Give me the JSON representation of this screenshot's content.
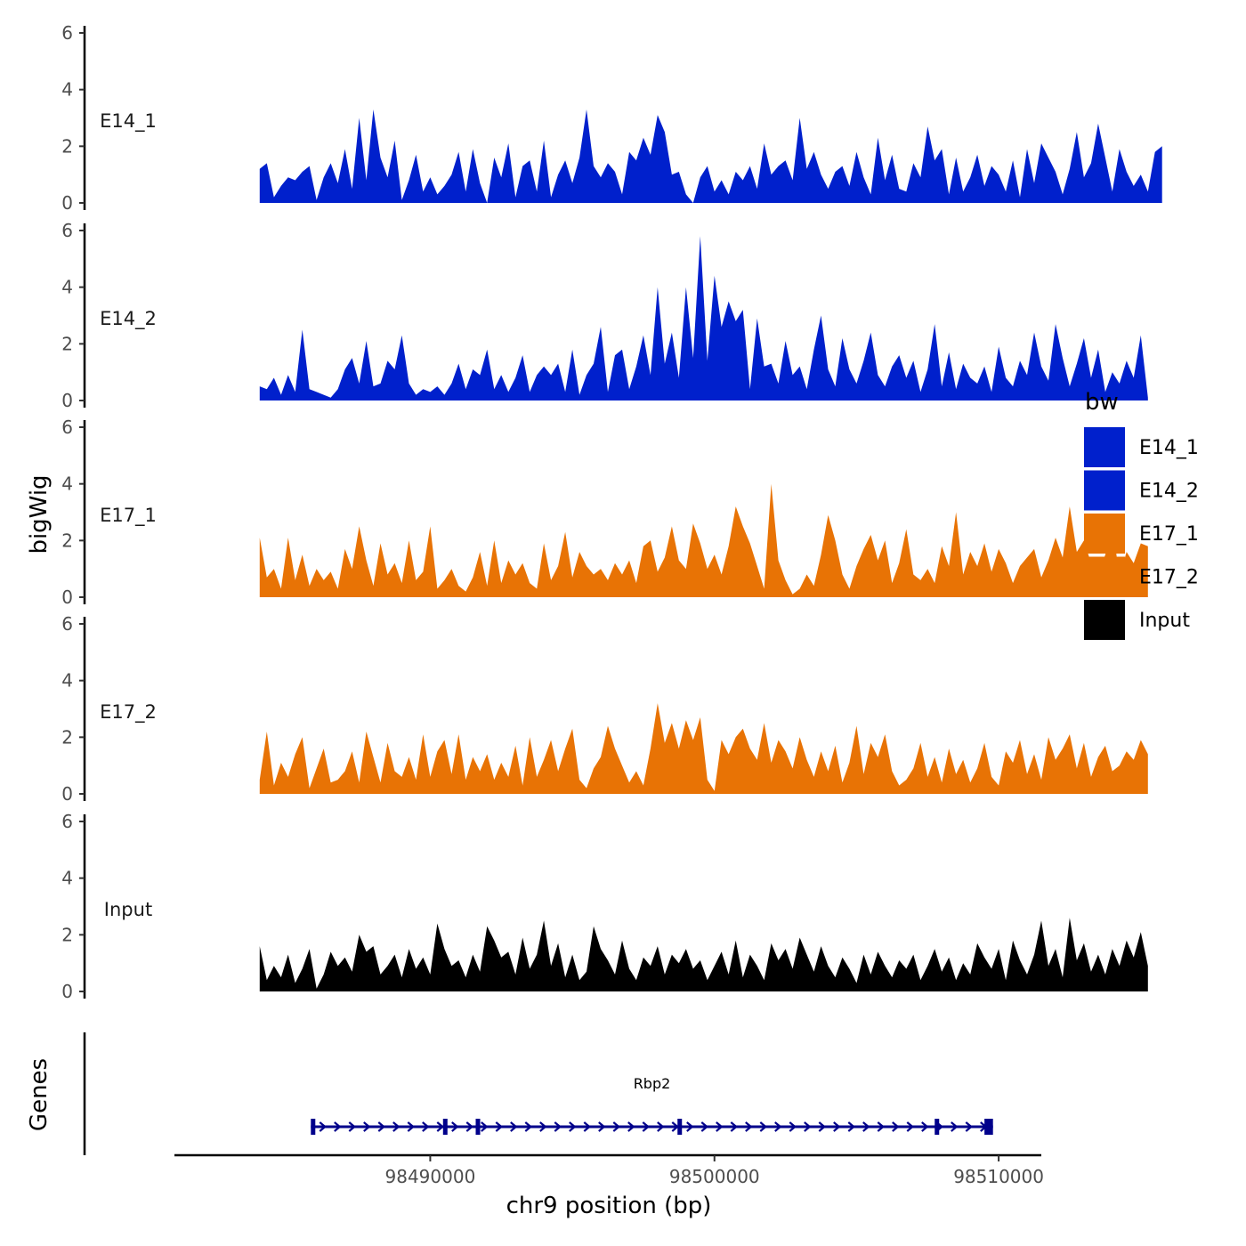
{
  "chart_data": {
    "type": "area",
    "title": "",
    "xlabel": "chr9 position (bp)",
    "ylabel": "bigWig",
    "genes_label": "Genes",
    "xlim": [
      98481000,
      98511500
    ],
    "ylim": [
      0,
      6
    ],
    "x_ticks": [
      98490000,
      98500000,
      98510000
    ],
    "x_tick_labels": [
      "98490000",
      "98500000",
      "98510000"
    ],
    "y_ticks": [
      0,
      2,
      4,
      6
    ],
    "y_tick_labels": [
      "0",
      "2",
      "4",
      "6"
    ],
    "signal_start": 98484000,
    "bin_size": 250,
    "legend": {
      "title": "bw",
      "entries": [
        {
          "label": "E14_1",
          "color": "#0020CC"
        },
        {
          "label": "E14_2",
          "color": "#0020CC"
        },
        {
          "label": "E17_1",
          "color": "#E87305"
        },
        {
          "label": "E17_2",
          "color": "#E87305"
        },
        {
          "label": "Input",
          "color": "#000000"
        }
      ]
    },
    "series": [
      {
        "name": "E14_1",
        "color": "#0020CC",
        "values": [
          1.2,
          1.4,
          0.2,
          0.6,
          0.9,
          0.8,
          1.1,
          1.3,
          0.1,
          0.9,
          1.4,
          0.7,
          1.9,
          0.5,
          3.0,
          0.8,
          3.3,
          1.6,
          0.9,
          2.2,
          0.1,
          0.8,
          1.7,
          0.4,
          0.9,
          0.3,
          0.6,
          1.0,
          1.8,
          0.4,
          1.9,
          0.7,
          0.0,
          1.6,
          0.9,
          2.1,
          0.2,
          1.3,
          1.5,
          0.4,
          2.2,
          0.2,
          1.0,
          1.5,
          0.7,
          1.6,
          3.3,
          1.3,
          0.9,
          1.4,
          1.1,
          0.3,
          1.8,
          1.5,
          2.3,
          1.7,
          3.1,
          2.5,
          1.0,
          1.1,
          0.3,
          0.0,
          0.9,
          1.3,
          0.4,
          0.8,
          0.3,
          1.1,
          0.8,
          1.3,
          0.5,
          2.1,
          1.0,
          1.3,
          1.5,
          0.8,
          3.0,
          1.2,
          1.8,
          1.0,
          0.5,
          1.1,
          1.3,
          0.6,
          1.8,
          0.9,
          0.3,
          2.3,
          0.8,
          1.7,
          0.5,
          0.4,
          1.4,
          0.9,
          2.7,
          1.5,
          1.9,
          0.3,
          1.6,
          0.4,
          0.9,
          1.7,
          0.6,
          1.3,
          1.0,
          0.4,
          1.5,
          0.2,
          1.9,
          0.7,
          2.1,
          1.6,
          1.1,
          0.3,
          1.2,
          2.5,
          0.9,
          1.4,
          2.8,
          1.6,
          0.4,
          1.9,
          1.1,
          0.6,
          1.0,
          0.4,
          1.8,
          2.0
        ]
      },
      {
        "name": "E14_2",
        "color": "#0020CC",
        "values": [
          0.5,
          0.4,
          0.8,
          0.2,
          0.9,
          0.3,
          2.5,
          0.4,
          0.3,
          0.2,
          0.1,
          0.4,
          1.1,
          1.5,
          0.6,
          2.1,
          0.5,
          0.6,
          1.4,
          1.1,
          2.3,
          0.6,
          0.2,
          0.4,
          0.3,
          0.5,
          0.2,
          0.6,
          1.3,
          0.4,
          1.1,
          0.9,
          1.8,
          0.4,
          0.9,
          0.3,
          0.8,
          1.6,
          0.3,
          0.9,
          1.2,
          0.9,
          1.3,
          0.3,
          1.8,
          0.2,
          0.9,
          1.3,
          2.6,
          0.3,
          1.6,
          1.8,
          0.4,
          1.2,
          2.3,
          0.9,
          4.0,
          1.3,
          2.4,
          0.8,
          4.0,
          1.5,
          5.8,
          1.4,
          4.4,
          2.6,
          3.5,
          2.8,
          3.2,
          0.4,
          2.9,
          1.2,
          1.3,
          0.6,
          2.1,
          0.9,
          1.2,
          0.4,
          1.8,
          3.0,
          1.1,
          0.5,
          2.2,
          1.1,
          0.6,
          1.4,
          2.4,
          0.9,
          0.5,
          1.2,
          1.6,
          0.8,
          1.4,
          0.3,
          1.1,
          2.7,
          0.5,
          1.7,
          0.4,
          1.3,
          0.8,
          0.6,
          1.2,
          0.3,
          1.9,
          0.8,
          0.5,
          1.4,
          0.9,
          2.4,
          1.2,
          0.7,
          2.7,
          1.5,
          0.5,
          1.3,
          2.2,
          0.8,
          1.8,
          0.3,
          1.0,
          0.6,
          1.4,
          0.8,
          2.3,
          0.1
        ]
      },
      {
        "name": "E17_1",
        "color": "#E87305",
        "values": [
          2.1,
          0.7,
          1.0,
          0.3,
          2.1,
          0.6,
          1.5,
          0.4,
          1.0,
          0.6,
          0.9,
          0.3,
          1.7,
          1.0,
          2.5,
          1.3,
          0.4,
          1.9,
          0.8,
          1.2,
          0.5,
          2.0,
          0.6,
          0.9,
          2.5,
          0.3,
          0.6,
          1.0,
          0.4,
          0.2,
          0.7,
          1.6,
          0.4,
          2.0,
          0.5,
          1.3,
          0.8,
          1.2,
          0.5,
          0.3,
          1.9,
          0.6,
          1.1,
          2.3,
          0.7,
          1.6,
          1.1,
          0.8,
          1.0,
          0.6,
          1.2,
          0.8,
          1.3,
          0.5,
          1.8,
          2.0,
          0.9,
          1.4,
          2.5,
          1.3,
          1.0,
          2.6,
          1.9,
          1.0,
          1.5,
          0.8,
          1.8,
          3.2,
          2.5,
          1.9,
          1.1,
          0.3,
          4.0,
          1.3,
          0.6,
          0.1,
          0.3,
          0.8,
          0.4,
          1.5,
          2.9,
          2.0,
          0.8,
          0.3,
          1.1,
          1.7,
          2.2,
          1.3,
          2.0,
          0.5,
          1.2,
          2.4,
          0.8,
          0.6,
          1.0,
          0.5,
          1.8,
          1.1,
          3.0,
          0.8,
          1.6,
          1.1,
          1.9,
          0.9,
          1.7,
          1.2,
          0.5,
          1.1,
          1.4,
          1.7,
          0.7,
          1.3,
          2.1,
          1.4,
          3.2,
          1.6,
          2.0,
          1.2,
          0.8,
          1.5,
          2.6,
          0.7,
          1.6,
          1.2,
          1.9,
          1.8
        ]
      },
      {
        "name": "E17_2",
        "color": "#E87305",
        "values": [
          0.5,
          2.2,
          0.3,
          1.1,
          0.6,
          1.4,
          2.0,
          0.2,
          0.9,
          1.6,
          0.4,
          0.5,
          0.8,
          1.5,
          0.4,
          2.2,
          1.3,
          0.4,
          1.8,
          0.8,
          0.6,
          1.3,
          0.5,
          2.1,
          0.6,
          1.5,
          1.9,
          0.7,
          2.1,
          0.5,
          1.3,
          0.8,
          1.4,
          0.5,
          1.1,
          0.6,
          1.7,
          0.3,
          2.0,
          0.6,
          1.2,
          1.9,
          0.8,
          1.6,
          2.3,
          0.5,
          0.2,
          0.9,
          1.3,
          2.4,
          1.6,
          1.0,
          0.4,
          0.8,
          0.3,
          1.6,
          3.2,
          1.8,
          2.5,
          1.6,
          2.6,
          1.9,
          2.7,
          0.5,
          0.1,
          1.9,
          1.4,
          2.0,
          2.3,
          1.6,
          1.2,
          2.5,
          1.1,
          1.9,
          1.5,
          0.9,
          2.0,
          1.2,
          0.6,
          1.5,
          0.8,
          1.7,
          0.4,
          1.1,
          2.4,
          0.7,
          1.8,
          1.3,
          2.1,
          0.8,
          0.3,
          0.5,
          0.9,
          1.8,
          0.6,
          1.3,
          0.4,
          1.6,
          0.7,
          1.2,
          0.4,
          0.9,
          1.8,
          0.6,
          0.3,
          1.5,
          1.1,
          1.9,
          0.7,
          1.4,
          0.5,
          2.0,
          1.2,
          1.6,
          2.1,
          0.9,
          1.8,
          0.6,
          1.3,
          1.7,
          0.8,
          1.0,
          1.5,
          1.2,
          1.9,
          1.4
        ]
      },
      {
        "name": "Input",
        "color": "#000000",
        "values": [
          1.6,
          0.4,
          0.9,
          0.5,
          1.3,
          0.3,
          0.8,
          1.5,
          0.1,
          0.6,
          1.4,
          0.9,
          1.2,
          0.7,
          2.0,
          1.4,
          1.6,
          0.6,
          0.9,
          1.3,
          0.5,
          1.5,
          0.8,
          1.2,
          0.6,
          2.4,
          1.5,
          0.9,
          1.1,
          0.5,
          1.3,
          0.7,
          2.3,
          1.8,
          1.2,
          1.4,
          0.6,
          1.9,
          0.8,
          1.3,
          2.5,
          0.9,
          1.7,
          0.5,
          1.3,
          0.4,
          0.7,
          2.3,
          1.5,
          1.1,
          0.6,
          1.8,
          0.8,
          0.4,
          1.2,
          0.9,
          1.6,
          0.6,
          1.3,
          1.0,
          1.5,
          0.8,
          1.1,
          0.4,
          0.9,
          1.4,
          0.6,
          1.8,
          0.5,
          1.3,
          0.9,
          0.4,
          1.7,
          1.1,
          1.5,
          0.8,
          1.9,
          1.3,
          0.7,
          1.6,
          0.9,
          0.5,
          1.2,
          0.8,
          0.3,
          1.3,
          0.6,
          1.4,
          0.9,
          0.5,
          1.1,
          0.8,
          1.3,
          0.4,
          0.9,
          1.5,
          0.7,
          1.2,
          0.4,
          1.0,
          0.6,
          1.7,
          1.2,
          0.8,
          1.5,
          0.4,
          1.8,
          1.1,
          0.6,
          1.3,
          2.5,
          0.9,
          1.5,
          0.5,
          2.6,
          1.1,
          1.7,
          0.7,
          1.3,
          0.6,
          1.5,
          0.9,
          1.8,
          1.2,
          2.1,
          0.9
        ]
      }
    ],
    "gene_track": {
      "gene_name": "Rbp2",
      "gene_start": 98485800,
      "gene_end": 98509800,
      "strand": "+",
      "color": "#00008B",
      "exons": [
        {
          "start": 98485800,
          "end": 98485900
        },
        {
          "start": 98490450,
          "end": 98490600
        },
        {
          "start": 98491600,
          "end": 98491700
        },
        {
          "start": 98498700,
          "end": 98498850
        },
        {
          "start": 98507750,
          "end": 98507850
        },
        {
          "start": 98509500,
          "end": 98509800
        }
      ]
    }
  }
}
